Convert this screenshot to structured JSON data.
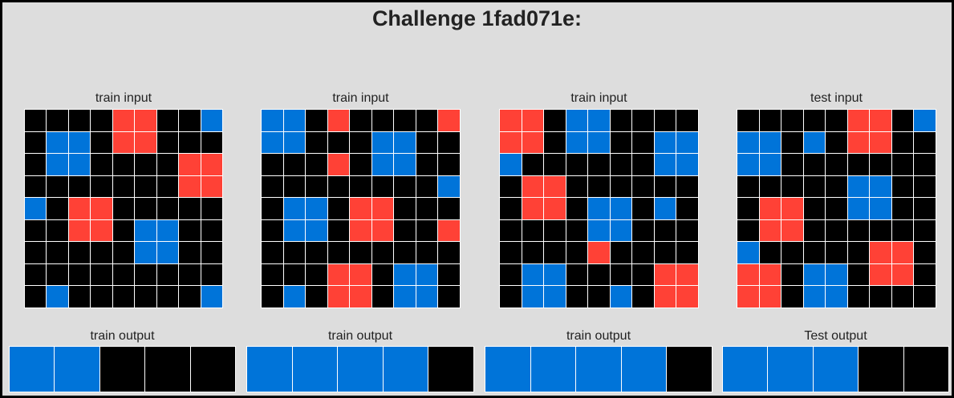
{
  "title": "Challenge 1fad071e:",
  "colors": {
    "0": "#000000",
    "1": "#0074D9",
    "2": "#FF4136"
  },
  "panels": [
    {
      "input_label": "train input",
      "output_label": "train output",
      "input": [
        [
          0,
          0,
          0,
          0,
          2,
          2,
          0,
          0,
          1
        ],
        [
          0,
          1,
          1,
          0,
          2,
          2,
          0,
          0,
          0
        ],
        [
          0,
          1,
          1,
          0,
          0,
          0,
          0,
          2,
          2
        ],
        [
          0,
          0,
          0,
          0,
          0,
          0,
          0,
          2,
          2
        ],
        [
          1,
          0,
          2,
          2,
          0,
          0,
          0,
          0,
          0
        ],
        [
          0,
          0,
          2,
          2,
          0,
          1,
          1,
          0,
          0
        ],
        [
          0,
          0,
          0,
          0,
          0,
          1,
          1,
          0,
          0
        ],
        [
          0,
          0,
          0,
          0,
          0,
          0,
          0,
          0,
          0
        ],
        [
          0,
          1,
          0,
          0,
          0,
          0,
          0,
          0,
          1
        ]
      ],
      "output": [
        [
          1,
          1,
          0,
          0,
          0
        ]
      ]
    },
    {
      "input_label": "train input",
      "output_label": "train output",
      "input": [
        [
          1,
          1,
          0,
          2,
          0,
          0,
          0,
          0,
          2
        ],
        [
          1,
          1,
          0,
          0,
          0,
          1,
          1,
          0,
          0
        ],
        [
          0,
          0,
          0,
          2,
          0,
          1,
          1,
          0,
          0
        ],
        [
          0,
          0,
          0,
          0,
          0,
          0,
          0,
          0,
          1
        ],
        [
          0,
          1,
          1,
          0,
          2,
          2,
          0,
          0,
          0
        ],
        [
          0,
          1,
          1,
          0,
          2,
          2,
          0,
          0,
          2
        ],
        [
          0,
          0,
          0,
          0,
          0,
          0,
          0,
          0,
          0
        ],
        [
          0,
          0,
          0,
          2,
          2,
          0,
          1,
          1,
          0
        ],
        [
          0,
          1,
          0,
          2,
          2,
          0,
          1,
          1,
          0
        ]
      ],
      "output": [
        [
          1,
          1,
          1,
          1,
          0
        ]
      ]
    },
    {
      "input_label": "train input",
      "output_label": "train output",
      "input": [
        [
          2,
          2,
          0,
          1,
          1,
          0,
          0,
          0,
          0
        ],
        [
          2,
          2,
          0,
          1,
          1,
          0,
          0,
          1,
          1
        ],
        [
          1,
          0,
          0,
          0,
          0,
          0,
          0,
          1,
          1
        ],
        [
          0,
          2,
          2,
          0,
          0,
          0,
          0,
          0,
          0
        ],
        [
          0,
          2,
          2,
          0,
          1,
          1,
          0,
          1,
          0
        ],
        [
          0,
          0,
          0,
          0,
          1,
          1,
          0,
          0,
          0
        ],
        [
          0,
          0,
          0,
          0,
          2,
          0,
          0,
          0,
          0
        ],
        [
          0,
          1,
          1,
          0,
          0,
          0,
          0,
          2,
          2
        ],
        [
          0,
          1,
          1,
          0,
          0,
          1,
          0,
          2,
          2
        ]
      ],
      "output": [
        [
          1,
          1,
          1,
          1,
          0
        ]
      ]
    },
    {
      "input_label": "test input",
      "output_label": "Test output",
      "input": [
        [
          0,
          0,
          0,
          0,
          0,
          2,
          2,
          0,
          1
        ],
        [
          1,
          1,
          0,
          1,
          0,
          2,
          2,
          0,
          0
        ],
        [
          1,
          1,
          0,
          0,
          0,
          0,
          0,
          0,
          0
        ],
        [
          0,
          0,
          0,
          0,
          0,
          1,
          1,
          0,
          0
        ],
        [
          0,
          2,
          2,
          0,
          0,
          1,
          1,
          0,
          0
        ],
        [
          0,
          2,
          2,
          0,
          0,
          0,
          0,
          0,
          0
        ],
        [
          1,
          0,
          0,
          0,
          0,
          0,
          2,
          2,
          0
        ],
        [
          2,
          2,
          0,
          1,
          1,
          0,
          2,
          2,
          0
        ],
        [
          2,
          2,
          0,
          1,
          1,
          0,
          0,
          0,
          0
        ]
      ],
      "output": [
        [
          1,
          1,
          1,
          0,
          0
        ]
      ]
    }
  ]
}
